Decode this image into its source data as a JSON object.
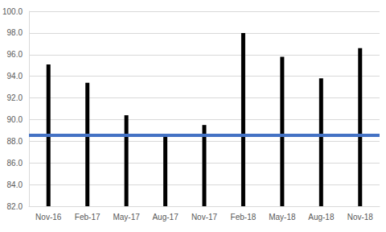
{
  "chart_data": {
    "type": "bar",
    "categories": [
      "Nov-16",
      "Feb-17",
      "May-17",
      "Aug-17",
      "Nov-17",
      "Feb-18",
      "May-18",
      "Aug-18",
      "Nov-18"
    ],
    "values": [
      95.1,
      93.4,
      90.4,
      88.5,
      89.5,
      98.0,
      95.8,
      93.8,
      96.6
    ],
    "color": "#000000",
    "reference_line": {
      "value": 88.6,
      "color": "#4472c4"
    },
    "ylim": [
      82,
      100
    ],
    "yticks": [
      {
        "value": 82,
        "label": "82.0"
      },
      {
        "value": 84,
        "label": "84.0"
      },
      {
        "value": 86,
        "label": "86.0"
      },
      {
        "value": 88,
        "label": "88.0"
      },
      {
        "value": 90,
        "label": "90.0"
      },
      {
        "value": 92,
        "label": "92.0"
      },
      {
        "value": 94,
        "label": "94.0"
      },
      {
        "value": 96,
        "label": "96.0"
      },
      {
        "value": 98,
        "label": "98.0"
      },
      {
        "value": 100,
        "label": "100.0"
      }
    ],
    "grid": true,
    "data_labels": false
  }
}
